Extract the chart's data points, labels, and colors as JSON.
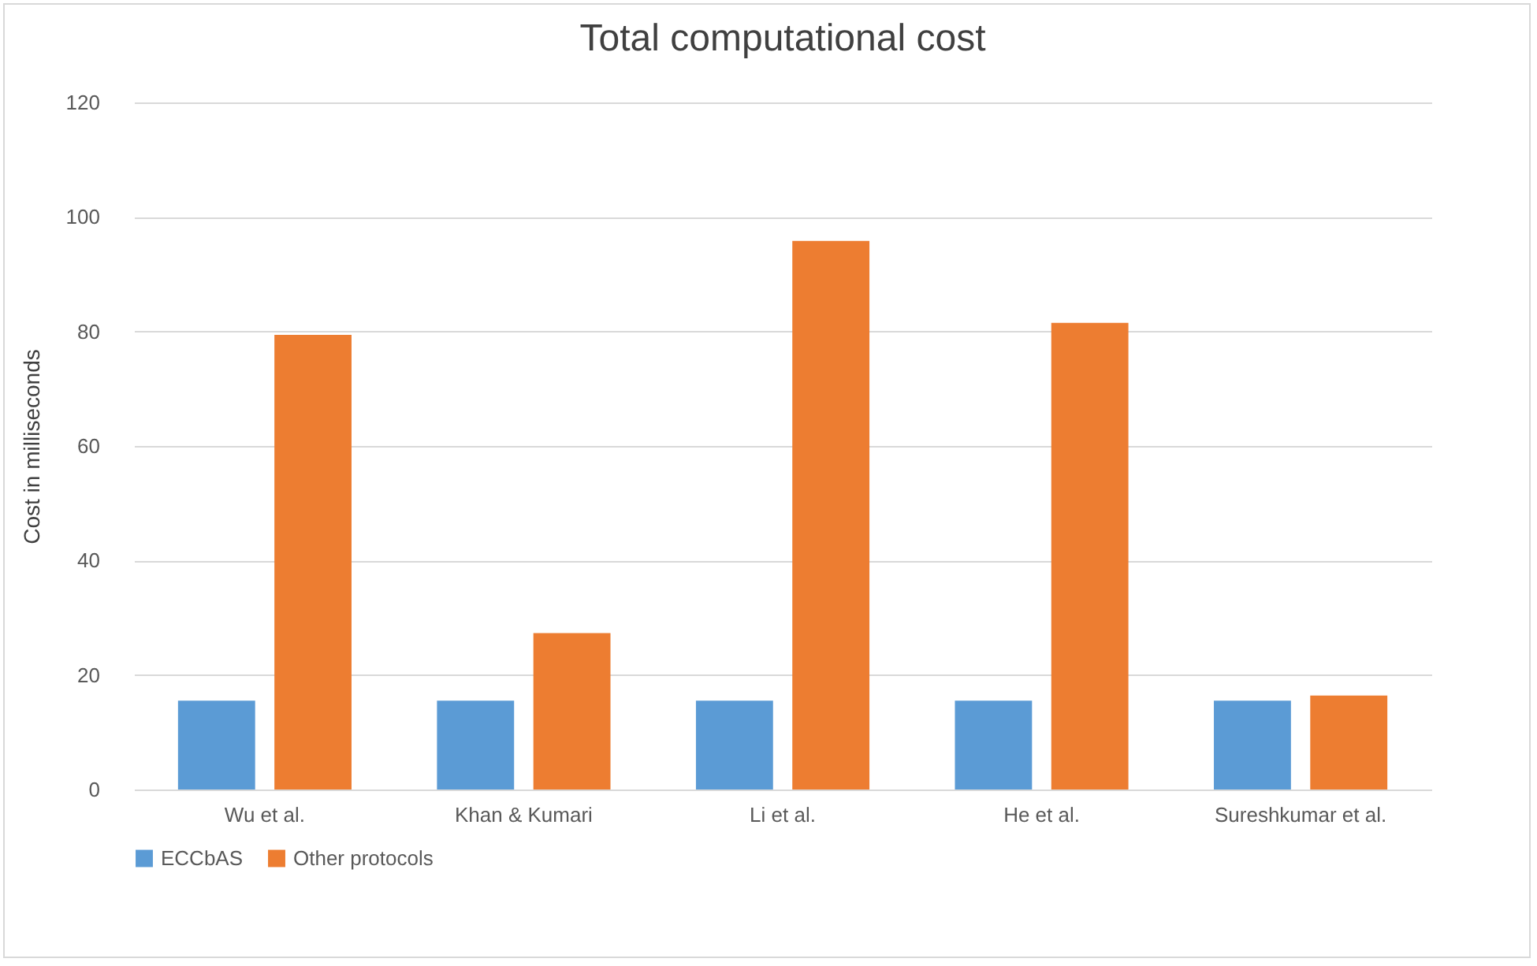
{
  "chart_data": {
    "type": "bar",
    "title": "Total computational cost",
    "ylabel": "Cost in milliseconds",
    "categories": [
      "Wu et al.",
      "Khan & Kumari",
      "Li et al.",
      "He et al.",
      "Sureshkumar et al."
    ],
    "series": [
      {
        "name": "ECCbAS",
        "color": "#5b9bd5",
        "values": [
          15.5,
          15.5,
          15.5,
          15.5,
          15.5
        ]
      },
      {
        "name": "Other protocols",
        "color": "#ed7d31",
        "values": [
          79.4,
          27.3,
          95.8,
          81.5,
          16.4
        ]
      }
    ],
    "ylim": [
      0,
      120
    ],
    "yticks": [
      0,
      20,
      40,
      60,
      80,
      100,
      120
    ],
    "grid": "y",
    "legend": "bottom"
  }
}
